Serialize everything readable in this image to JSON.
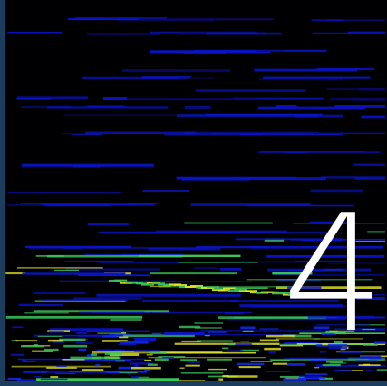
{
  "overlay": {
    "label": "4"
  }
}
